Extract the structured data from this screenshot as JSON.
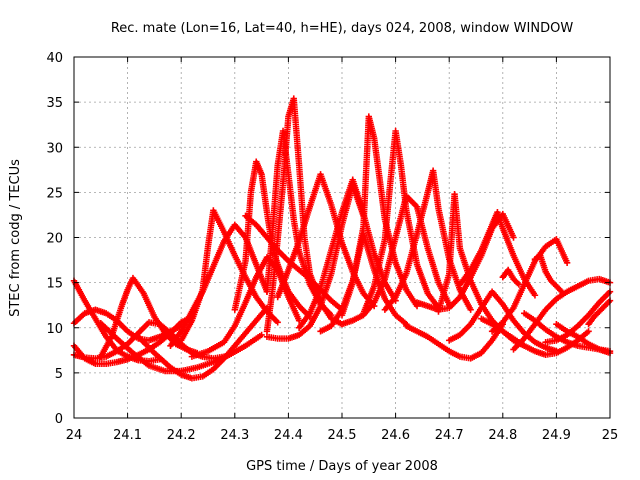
{
  "chart_data": {
    "type": "scatter",
    "title": "Rec. mate (Lon=16, Lat=40, h=HE), days 024, 2008, window WINDOW",
    "xlabel": "GPS time / Days of year 2008",
    "ylabel": "STEC from codg / TECUs",
    "xlim": [
      24,
      25
    ],
    "ylim": [
      0,
      40
    ],
    "xticks": [
      "24",
      "24.1",
      "24.2",
      "24.3",
      "24.4",
      "24.5",
      "24.6",
      "24.7",
      "24.8",
      "24.9",
      "25"
    ],
    "yticks": [
      "0",
      "5",
      "10",
      "15",
      "20",
      "25",
      "30",
      "35",
      "40"
    ],
    "grid": true,
    "marker": "+",
    "color": "#ff0000",
    "series": [
      {
        "x": [
          24.0,
          24.02,
          24.04,
          24.06,
          24.08,
          24.1,
          24.12,
          24.14,
          24.16
        ],
        "y": [
          15.2,
          13.0,
          11.0,
          9.0,
          7.5,
          6.8,
          6.4,
          6.3,
          6.5
        ]
      },
      {
        "x": [
          24.0,
          24.02,
          24.04,
          24.06,
          24.08,
          24.1,
          24.12,
          24.14,
          24.16,
          24.18,
          24.2,
          24.22
        ],
        "y": [
          8.0,
          6.6,
          6.0,
          6.0,
          6.2,
          6.5,
          7.0,
          7.6,
          8.4,
          9.4,
          10.6,
          11.2
        ]
      },
      {
        "x": [
          24.0,
          24.02,
          24.04,
          24.06,
          24.08,
          24.1,
          24.12,
          24.14,
          24.16,
          24.18,
          24.2
        ],
        "y": [
          10.5,
          11.6,
          12.0,
          11.6,
          10.8,
          9.6,
          8.8,
          8.6,
          9.0,
          9.6,
          10.2
        ]
      },
      {
        "x": [
          24.0,
          24.02,
          24.04,
          24.06,
          24.08,
          24.1,
          24.12,
          24.14,
          24.16,
          24.18,
          24.2,
          24.22,
          24.24,
          24.26,
          24.28
        ],
        "y": [
          7.0,
          6.7,
          6.6,
          6.8,
          7.4,
          8.2,
          9.4,
          10.6,
          10.4,
          9.4,
          8.2,
          7.2,
          6.8,
          6.6,
          6.8
        ]
      },
      {
        "x": [
          24.05,
          24.07,
          24.09,
          24.1,
          24.11,
          24.13,
          24.15,
          24.17,
          24.19,
          24.21,
          24.23
        ],
        "y": [
          6.8,
          9.0,
          12.6,
          14.2,
          15.5,
          13.8,
          11.2,
          9.4,
          8.2,
          7.6,
          7.2
        ]
      },
      {
        "x": [
          24.05,
          24.08,
          24.11,
          24.14,
          24.17,
          24.2,
          24.23,
          24.26,
          24.29,
          24.32,
          24.35
        ],
        "y": [
          10.5,
          8.8,
          7.2,
          5.8,
          5.2,
          5.2,
          5.6,
          6.2,
          7.0,
          8.0,
          9.2
        ]
      },
      {
        "x": [
          24.12,
          24.15,
          24.18,
          24.2,
          24.22,
          24.24,
          24.26,
          24.28,
          24.3,
          24.32,
          24.34,
          24.36
        ],
        "y": [
          9.0,
          7.2,
          5.6,
          4.8,
          4.4,
          4.6,
          5.4,
          6.6,
          8.0,
          9.4,
          10.8,
          12.2
        ]
      },
      {
        "x": [
          24.18,
          24.2,
          24.22,
          24.24,
          24.26,
          24.28,
          24.3,
          24.32,
          24.34,
          24.36
        ],
        "y": [
          8.0,
          9.6,
          11.8,
          14.0,
          16.8,
          19.6,
          21.4,
          20.0,
          17.0,
          14.0
        ]
      },
      {
        "x": [
          24.2,
          24.22,
          24.24,
          24.25,
          24.26,
          24.28,
          24.3,
          24.32,
          24.34,
          24.36,
          24.38
        ],
        "y": [
          8.6,
          10.8,
          14.2,
          19.0,
          23.0,
          20.6,
          18.0,
          15.6,
          13.4,
          11.8,
          10.6
        ]
      },
      {
        "x": [
          24.22,
          24.25,
          24.28,
          24.3,
          24.32,
          24.34,
          24.36,
          24.38,
          24.4,
          24.42
        ],
        "y": [
          6.8,
          7.4,
          8.4,
          10.2,
          12.8,
          15.6,
          17.8,
          16.4,
          13.4,
          10.8
        ]
      },
      {
        "x": [
          24.3,
          24.32,
          24.33,
          24.34,
          24.35,
          24.36,
          24.37,
          24.38,
          24.39,
          24.4,
          24.42,
          24.44
        ],
        "y": [
          12.0,
          17.4,
          25.0,
          28.4,
          27.0,
          22.8,
          19.0,
          17.0,
          15.4,
          14.0,
          12.4,
          11.2
        ]
      },
      {
        "x": [
          24.36,
          24.37,
          24.38,
          24.39,
          24.4,
          24.41,
          24.42,
          24.43,
          24.44,
          24.46,
          24.48,
          24.5
        ],
        "y": [
          9.6,
          14.0,
          19.8,
          26.0,
          33.4,
          35.4,
          28.0,
          20.0,
          16.0,
          12.8,
          11.0,
          10.4
        ]
      },
      {
        "x": [
          24.36,
          24.37,
          24.38,
          24.39,
          24.4,
          24.41,
          24.42,
          24.44,
          24.46,
          24.48
        ],
        "y": [
          14.0,
          20.4,
          28.0,
          31.8,
          27.0,
          22.0,
          18.4,
          14.8,
          12.6,
          11.4
        ]
      },
      {
        "x": [
          24.32,
          24.34,
          24.36,
          24.38,
          24.4,
          24.42,
          24.44,
          24.46,
          24.48,
          24.5
        ],
        "y": [
          22.4,
          21.4,
          20.0,
          18.6,
          17.4,
          16.4,
          15.4,
          14.2,
          13.0,
          12.0
        ]
      },
      {
        "x": [
          24.36,
          24.38,
          24.4,
          24.42,
          24.44,
          24.46,
          24.48,
          24.5,
          24.52,
          24.54
        ],
        "y": [
          9.0,
          8.8,
          8.8,
          9.2,
          10.2,
          12.4,
          16.0,
          21.4,
          25.8,
          22.4
        ]
      },
      {
        "x": [
          24.38,
          24.4,
          24.42,
          24.44,
          24.46,
          24.48,
          24.5,
          24.52,
          24.54,
          24.56
        ],
        "y": [
          13.4,
          16.4,
          19.6,
          23.4,
          27.0,
          23.6,
          19.4,
          16.2,
          13.8,
          12.4
        ]
      },
      {
        "x": [
          24.42,
          24.44,
          24.46,
          24.48,
          24.5,
          24.52,
          24.54,
          24.56,
          24.58,
          24.6
        ],
        "y": [
          10.0,
          11.6,
          14.4,
          18.6,
          22.8,
          26.4,
          22.6,
          18.2,
          15.0,
          13.0
        ]
      },
      {
        "x": [
          24.46,
          24.48,
          24.5,
          24.52,
          24.54,
          24.56,
          24.58,
          24.6,
          24.62
        ],
        "y": [
          9.6,
          10.2,
          12.0,
          15.2,
          20.4,
          16.4,
          13.2,
          11.4,
          10.4
        ]
      },
      {
        "x": [
          24.5,
          24.52,
          24.54,
          24.55,
          24.56,
          24.57,
          24.58,
          24.6,
          24.62,
          24.64
        ],
        "y": [
          11.4,
          15.0,
          21.2,
          33.4,
          31.0,
          26.6,
          22.0,
          17.2,
          14.2,
          12.4
        ]
      },
      {
        "x": [
          24.54,
          24.56,
          24.58,
          24.59,
          24.6,
          24.61,
          24.62,
          24.64,
          24.66,
          24.68
        ],
        "y": [
          11.6,
          14.6,
          19.8,
          26.0,
          31.8,
          28.0,
          23.0,
          17.0,
          13.8,
          12.2
        ]
      },
      {
        "x": [
          24.5,
          24.52,
          24.54,
          24.56,
          24.58,
          24.6,
          24.62,
          24.64,
          24.66,
          24.68,
          24.7
        ],
        "y": [
          10.4,
          10.8,
          11.4,
          12.8,
          15.4,
          20.0,
          24.6,
          23.4,
          18.8,
          15.0,
          12.6
        ]
      },
      {
        "x": [
          24.58,
          24.6,
          24.62,
          24.64,
          24.66,
          24.67,
          24.68,
          24.7,
          24.72,
          24.74
        ],
        "y": [
          12.0,
          13.4,
          16.0,
          20.4,
          25.0,
          27.4,
          23.2,
          17.6,
          14.2,
          12.0
        ]
      },
      {
        "x": [
          24.62,
          24.64,
          24.66,
          24.68,
          24.7,
          24.72,
          24.74,
          24.76,
          24.78,
          24.8
        ],
        "y": [
          10.2,
          9.6,
          9.0,
          8.2,
          7.4,
          6.8,
          6.6,
          7.2,
          8.6,
          10.4
        ]
      },
      {
        "x": [
          24.64,
          24.66,
          24.68,
          24.7,
          24.72,
          24.74,
          24.76,
          24.78,
          24.8,
          24.82
        ],
        "y": [
          12.8,
          12.4,
          12.0,
          12.2,
          13.4,
          15.6,
          18.0,
          21.0,
          22.6,
          20.0
        ]
      },
      {
        "x": [
          24.68,
          24.7,
          24.71,
          24.72,
          24.74,
          24.76,
          24.78,
          24.8,
          24.82,
          24.84
        ],
        "y": [
          11.8,
          16.0,
          24.8,
          18.8,
          15.2,
          12.6,
          10.8,
          9.6,
          8.6,
          8.0
        ]
      },
      {
        "x": [
          24.72,
          24.74,
          24.76,
          24.78,
          24.79,
          24.8,
          24.82,
          24.84,
          24.86
        ],
        "y": [
          14.8,
          16.4,
          18.6,
          21.4,
          22.8,
          21.0,
          18.0,
          15.4,
          13.6
        ]
      },
      {
        "x": [
          24.7,
          24.72,
          24.74,
          24.76,
          24.78,
          24.8,
          24.82,
          24.84,
          24.86,
          24.88,
          24.9
        ],
        "y": [
          8.6,
          9.2,
          10.4,
          12.2,
          14.0,
          12.6,
          10.8,
          9.4,
          8.4,
          7.8,
          7.4
        ]
      },
      {
        "x": [
          24.78,
          24.8,
          24.82,
          24.84,
          24.86,
          24.88,
          24.9,
          24.92
        ],
        "y": [
          9.6,
          10.6,
          12.2,
          14.8,
          17.4,
          19.0,
          19.8,
          17.2
        ]
      },
      {
        "x": [
          24.76,
          24.78,
          24.8,
          24.82,
          24.84,
          24.86,
          24.88,
          24.9,
          24.92,
          24.94,
          24.96
        ],
        "y": [
          11.0,
          10.4,
          9.6,
          8.8,
          8.0,
          7.4,
          7.0,
          7.2,
          7.8,
          8.6,
          9.6
        ]
      },
      {
        "x": [
          24.82,
          24.84,
          24.86,
          24.88,
          24.9,
          24.92,
          24.94,
          24.96,
          24.98,
          25.0
        ],
        "y": [
          7.6,
          8.8,
          10.4,
          12.0,
          13.2,
          14.0,
          14.6,
          15.2,
          15.4,
          15.0
        ]
      },
      {
        "x": [
          24.84,
          24.86,
          24.88,
          24.9,
          24.92,
          24.94,
          24.96,
          24.98,
          25.0
        ],
        "y": [
          11.6,
          10.8,
          9.8,
          9.0,
          8.4,
          8.0,
          7.8,
          7.6,
          7.4
        ]
      },
      {
        "x": [
          24.88,
          24.9,
          24.92,
          24.94,
          24.96,
          24.98,
          25.0
        ],
        "y": [
          8.4,
          8.6,
          9.2,
          10.2,
          11.4,
          12.8,
          14.0
        ]
      },
      {
        "x": [
          24.9,
          24.92,
          24.94,
          24.96,
          24.98,
          25.0
        ],
        "y": [
          10.4,
          9.6,
          9.0,
          8.2,
          7.6,
          7.2
        ]
      },
      {
        "x": [
          24.86,
          24.87,
          24.88,
          24.89,
          24.9,
          24.91
        ],
        "y": [
          17.6,
          18.0,
          16.2,
          15.2,
          14.6,
          14.0
        ]
      },
      {
        "x": [
          24.8,
          24.81,
          24.82,
          24.83
        ],
        "y": [
          15.6,
          16.4,
          15.4,
          14.8
        ]
      },
      {
        "x": [
          24.96,
          24.97,
          24.98,
          24.99,
          25.0
        ],
        "y": [
          10.4,
          11.2,
          11.8,
          12.4,
          13.0
        ]
      }
    ]
  }
}
